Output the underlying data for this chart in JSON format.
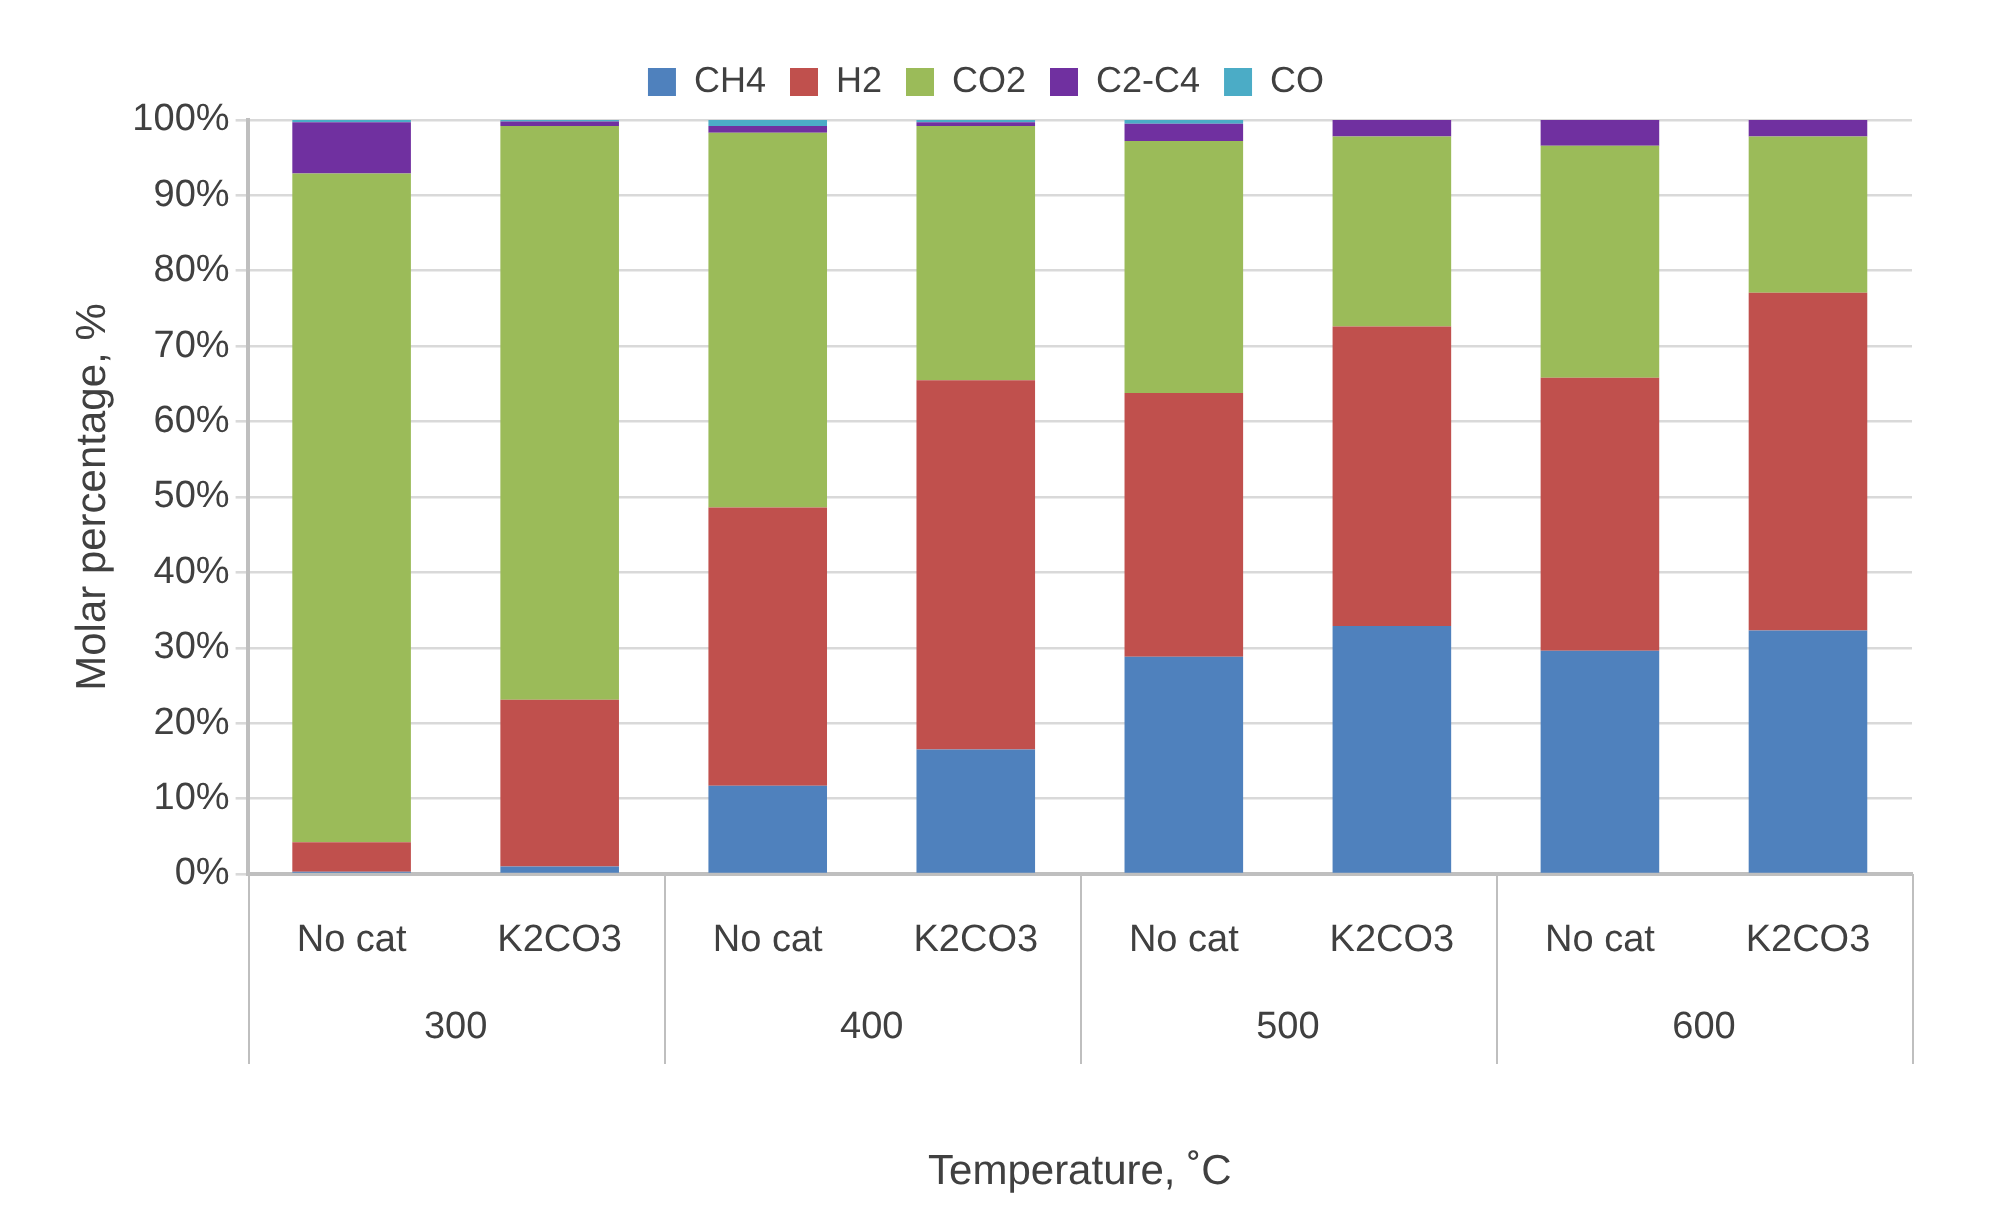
{
  "chart_data": {
    "type": "bar",
    "stacked": true,
    "xlabel": "Temperature, ˚C",
    "ylabel": "Molar percentage, %",
    "categories": [
      "No cat",
      "K2CO3",
      "No cat",
      "K2CO3",
      "No cat",
      "K2CO3",
      "No cat",
      "K2CO3"
    ],
    "annotations": [
      "300",
      "400",
      "500",
      "600"
    ],
    "series": [
      {
        "name": "CH4",
        "color": "#4f81bd",
        "values": [
          0.3,
          1.0,
          11.7,
          16.5,
          28.8,
          32.9,
          29.6,
          32.3
        ]
      },
      {
        "name": "H2",
        "color": "#c0504d",
        "values": [
          3.9,
          22.1,
          36.9,
          49.0,
          35.0,
          39.7,
          36.2,
          44.8
        ]
      },
      {
        "name": "CO2",
        "color": "#9bbb59",
        "values": [
          88.7,
          76.1,
          49.7,
          33.7,
          33.4,
          25.2,
          30.8,
          20.7
        ]
      },
      {
        "name": "C2-C4",
        "color": "#7030a0",
        "values": [
          6.8,
          0.6,
          0.9,
          0.5,
          2.3,
          2.2,
          3.4,
          2.2
        ]
      },
      {
        "name": "CO",
        "color": "#4bacc6",
        "values": [
          0.3,
          0.2,
          0.8,
          0.3,
          0.5,
          0,
          0,
          0
        ]
      }
    ],
    "ylim": [
      0,
      100
    ],
    "yticks": [
      {
        "value": 0,
        "label": "0%"
      },
      {
        "value": 10,
        "label": "10%"
      },
      {
        "value": 20,
        "label": "20%"
      },
      {
        "value": 30,
        "label": "30%"
      },
      {
        "value": 40,
        "label": "40%"
      },
      {
        "value": 50,
        "label": "50%"
      },
      {
        "value": 60,
        "label": "60%"
      },
      {
        "value": 70,
        "label": "70%"
      },
      {
        "value": 80,
        "label": "80%"
      },
      {
        "value": 90,
        "label": "90%"
      },
      {
        "value": 100,
        "label": "100%"
      }
    ],
    "grid": "y",
    "legend": "top"
  }
}
